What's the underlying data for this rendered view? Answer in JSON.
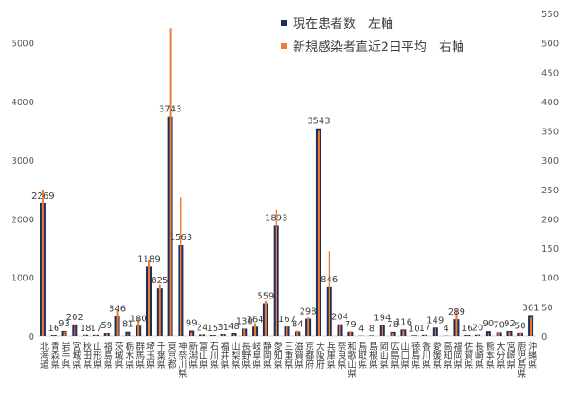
{
  "chart_data": {
    "type": "bar",
    "categories": [
      "北海道",
      "青森県",
      "岩手県",
      "宮城県",
      "秋田県",
      "山形県",
      "福島県",
      "茨城県",
      "栃木県",
      "群馬県",
      "埼玉県",
      "千葉県",
      "東京都",
      "神奈川県",
      "新潟県",
      "富山県",
      "石川県",
      "福井県",
      "山梨県",
      "長野県",
      "岐阜県",
      "静岡県",
      "愛知県",
      "三重県",
      "滋賀県",
      "京都府",
      "大阪府",
      "兵庫県",
      "奈良県",
      "和歌山県",
      "鳥取県",
      "島根県",
      "岡山県",
      "広島県",
      "山口県",
      "徳島県",
      "香川県",
      "愛媛県",
      "高知県",
      "福岡県",
      "佐賀県",
      "長崎県",
      "熊本県",
      "大分県",
      "宮崎県",
      "鹿児島県",
      "沖縄県"
    ],
    "series": [
      {
        "name": "現在患者数　左軸",
        "axis": "left",
        "color": "#1f2d5c",
        "values": [
          2269,
          16,
          93,
          202,
          18,
          17,
          59,
          346,
          81,
          180,
          1189,
          825,
          3743,
          1563,
          99,
          24,
          15,
          31,
          48,
          130,
          164,
          559,
          1893,
          167,
          84,
          298,
          3543,
          846,
          204,
          79,
          4,
          8,
          194,
          78,
          116,
          10,
          17,
          149,
          4,
          289,
          16,
          20,
          90,
          70,
          92,
          50,
          361
        ]
      },
      {
        "name": "新規感染者直近2日平均　右軸",
        "axis": "right",
        "color": "#ed7d31",
        "values": [
          250,
          1,
          8,
          18,
          2,
          2,
          4,
          45,
          5,
          30,
          130,
          88,
          525,
          237,
          7,
          2,
          1,
          3,
          3,
          12,
          22,
          60,
          215,
          17,
          10,
          32,
          350,
          145,
          20,
          9,
          0,
          0,
          18,
          6,
          10,
          0,
          2,
          14,
          0,
          45,
          1,
          2,
          6,
          6,
          8,
          7,
          32
        ]
      }
    ],
    "data_labels": [
      "2269",
      "16",
      "93",
      "202",
      "18",
      "17",
      "59",
      "346",
      "81",
      "180",
      "1189",
      "825",
      "3743",
      "1563",
      "99",
      "24",
      "15",
      "31",
      "48",
      "130",
      "164",
      "559",
      "1893",
      "167",
      "84",
      "298",
      "3543",
      "846",
      "204",
      "79",
      "4",
      "8",
      "194",
      "78",
      "116",
      "10",
      "17",
      "149",
      "4",
      "289",
      "16",
      "20",
      "90",
      "70",
      "92",
      "50",
      "361"
    ],
    "y_left": {
      "ticks": [
        "0",
        "1000",
        "2000",
        "3000",
        "4000",
        "5000"
      ],
      "ylim": [
        0,
        5500
      ]
    },
    "y_right": {
      "ticks": [
        "0",
        "50",
        "100",
        "150",
        "200",
        "250",
        "300",
        "350",
        "400",
        "450",
        "500",
        "550"
      ],
      "ylim": [
        0,
        550
      ]
    },
    "grid": false,
    "legend": "top-right"
  }
}
